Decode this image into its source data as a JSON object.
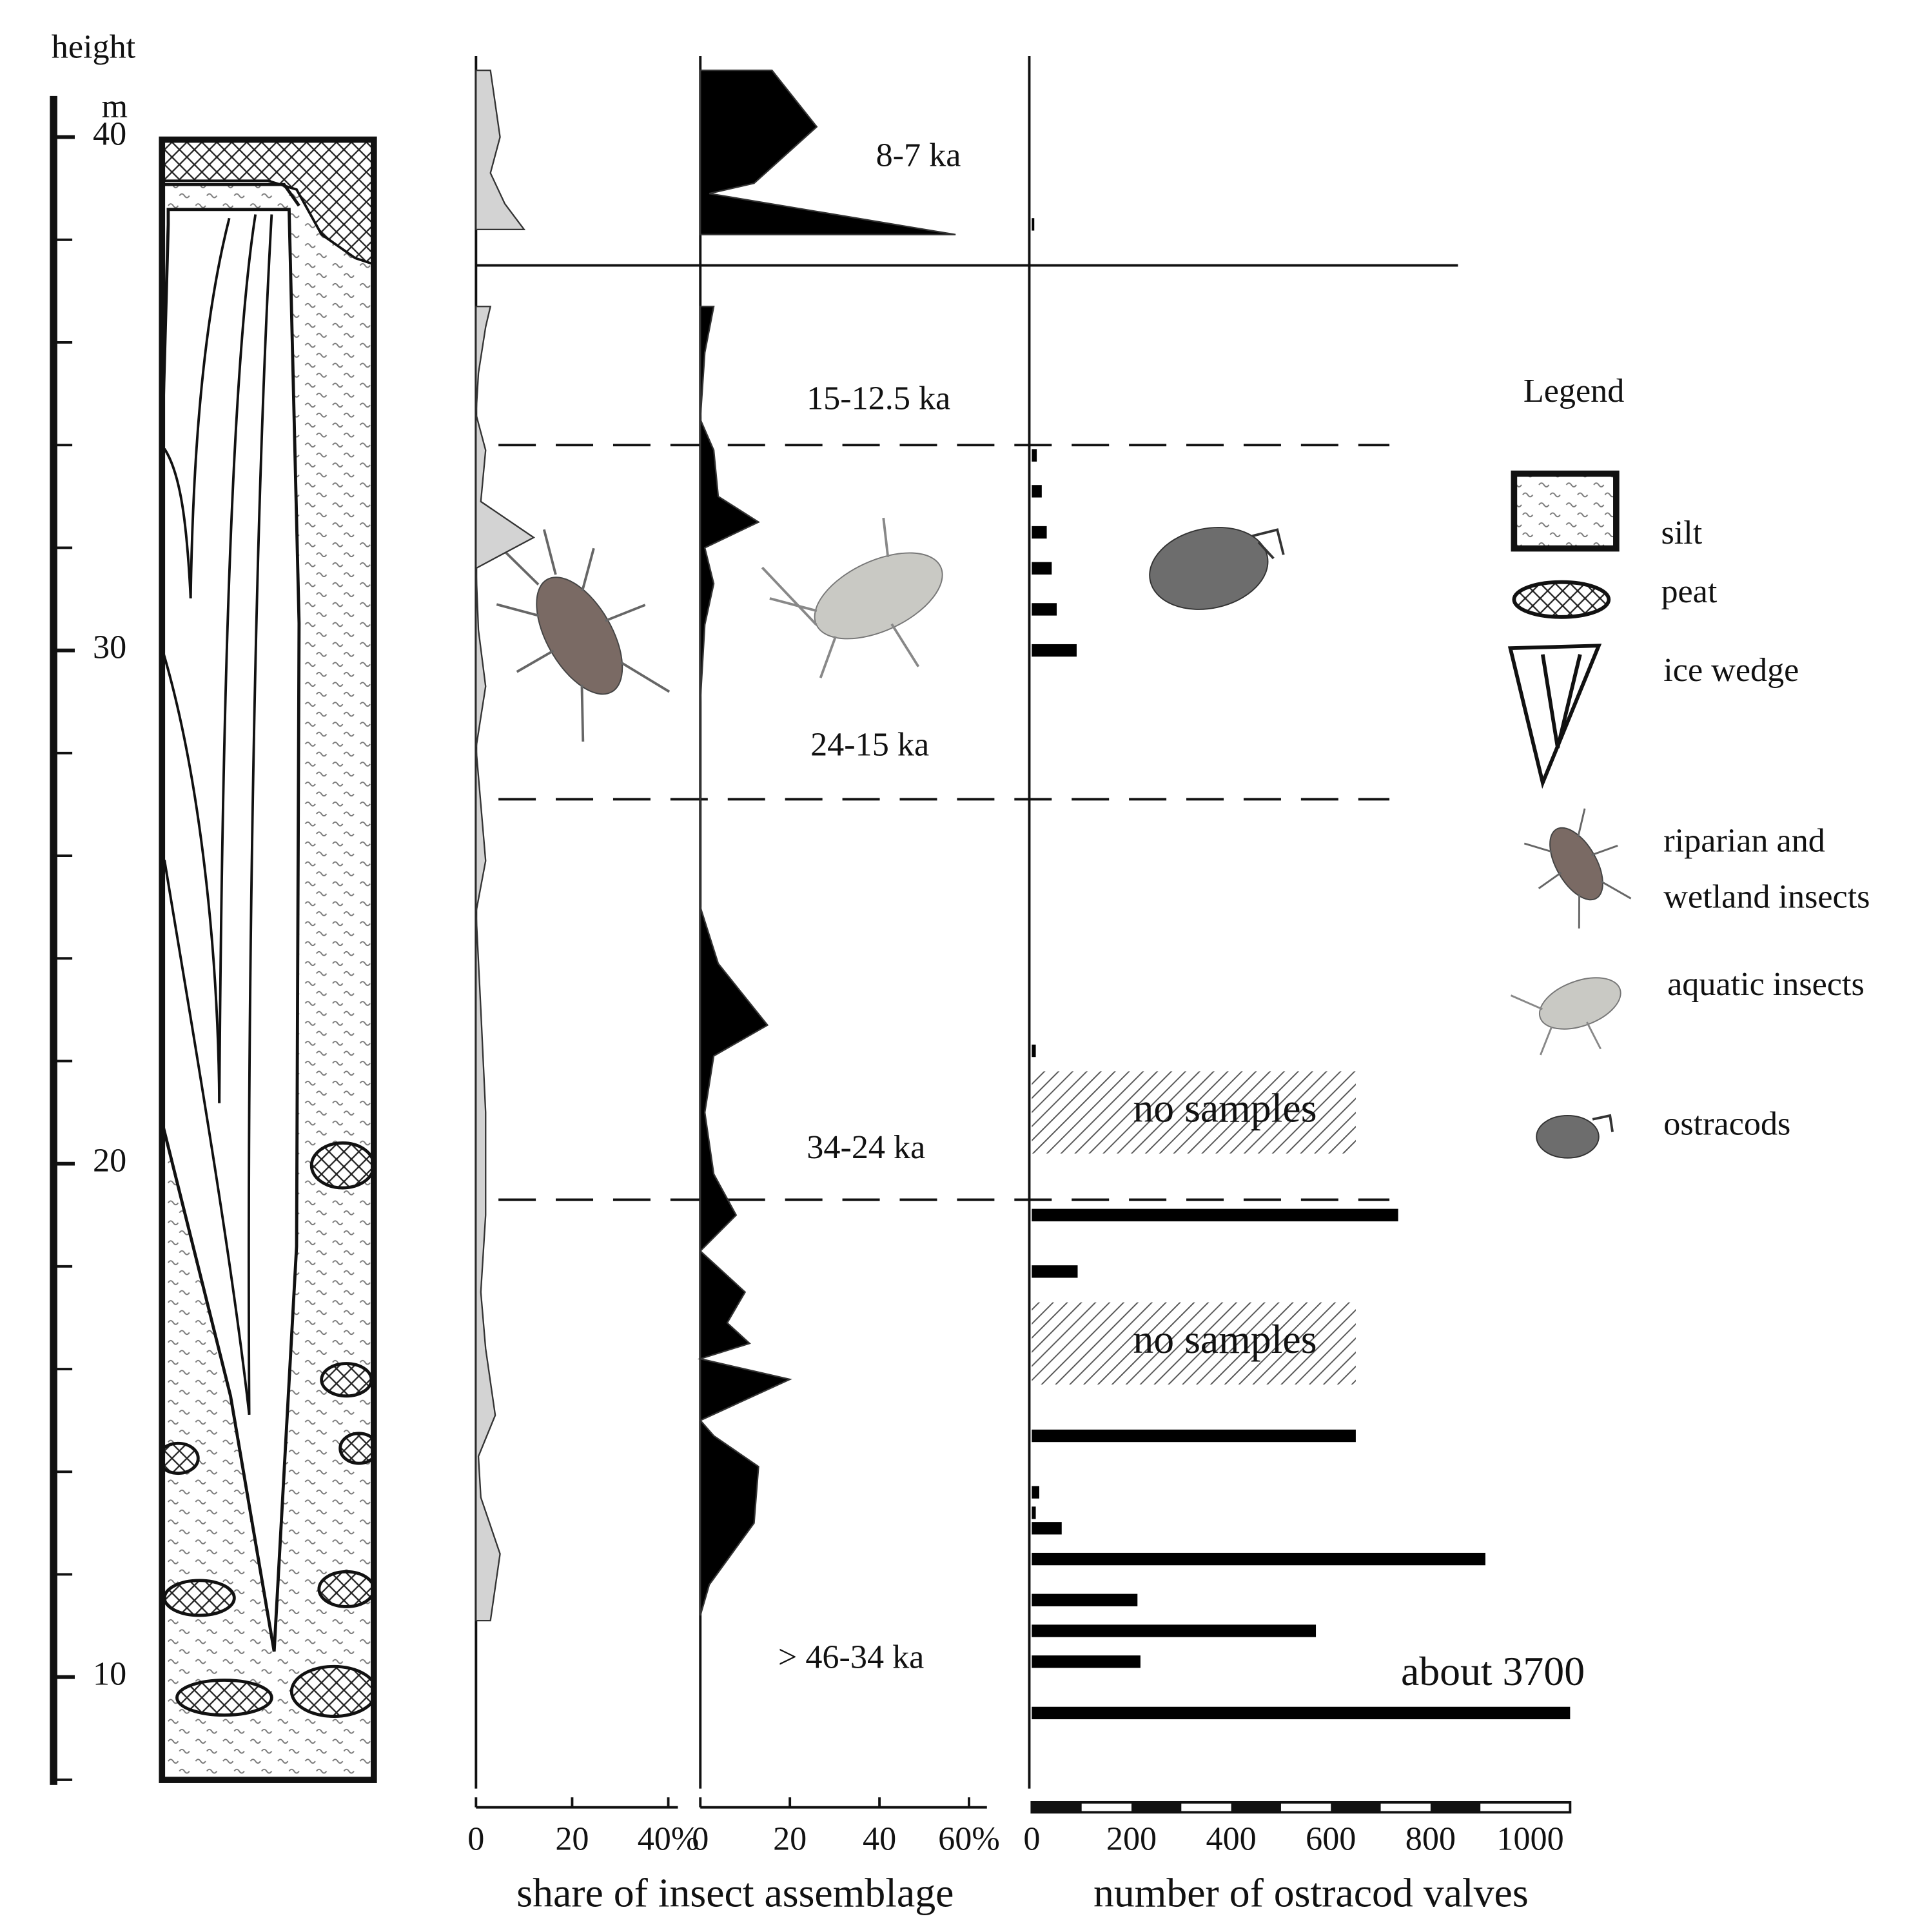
{
  "chart_data": [
    {
      "type": "column",
      "ylabel": "height",
      "yunit": "m",
      "ylim": [
        7.9,
        40.8
      ],
      "yticks": [
        10,
        20,
        30,
        40
      ],
      "yminorticks": [
        8,
        12,
        14,
        16,
        18,
        22,
        24,
        26,
        28,
        32,
        34,
        36,
        38
      ],
      "zone_boundaries": [
        37.5,
        34.0,
        27.1,
        19.3
      ],
      "zone_labels": [
        "8-7 ka",
        "15-12.5 ka",
        "24-15 ka",
        "34-24 ka",
        "> 46-34 ka"
      ],
      "legend": {
        "title": "Legend",
        "items": [
          [
            "silt"
          ],
          [
            "peat"
          ],
          [
            "ice wedge"
          ],
          [
            "riparian and",
            "wetland insects"
          ],
          [
            "aquatic insects"
          ],
          [
            "ostracods"
          ]
        ]
      }
    },
    {
      "type": "area",
      "color": "#d3d3d3",
      "xlim": [
        0,
        42
      ],
      "xticks": [
        0,
        20,
        {
          "value": 40,
          "label": "40%"
        }
      ],
      "xlabel": "share of insect assemblage",
      "y": [
        41.3,
        40.0,
        39.3,
        38.7,
        38.2,
        null,
        36.7,
        36.3,
        35.4,
        34.6,
        33.9,
        32.9,
        32.2,
        31.6,
        30.4,
        29.3,
        28.1,
        27.0,
        25.9,
        24.9,
        23.0,
        21.0,
        19.0,
        17.5,
        16.4,
        15.1,
        14.3,
        13.5,
        12.4,
        11.1
      ],
      "values": [
        3,
        5,
        3,
        6,
        10,
        null,
        3,
        2,
        0.5,
        0,
        2,
        1,
        12,
        0,
        0.5,
        2,
        0,
        1,
        2,
        0,
        1,
        2,
        2,
        1,
        2,
        4,
        0.5,
        1,
        5,
        3
      ]
    },
    {
      "type": "area",
      "color": "#000000",
      "xlim": [
        0,
        64
      ],
      "xticks": [
        0,
        20,
        40,
        {
          "value": 60,
          "label": "60%"
        }
      ],
      "y": [
        41.3,
        40.2,
        39.1,
        38.9,
        38.1,
        null,
        36.7,
        35.8,
        34.5,
        33.9,
        33.0,
        32.5,
        32.0,
        31.3,
        30.5,
        29.0,
        27.0,
        25.0,
        23.9,
        22.7,
        22.1,
        21.0,
        19.8,
        19.0,
        18.3,
        17.5,
        16.9,
        16.5,
        16.2,
        15.8,
        15.0,
        14.7,
        14.1,
        13.0,
        11.8,
        11.2
      ],
      "values": [
        16,
        26,
        12,
        2,
        57,
        null,
        3,
        1,
        0,
        3,
        4,
        13,
        1,
        3,
        1,
        0,
        0,
        0,
        4,
        15,
        3,
        1,
        3,
        8,
        0,
        10,
        6,
        11,
        0,
        20,
        0,
        3,
        13,
        12,
        2,
        0
      ]
    },
    {
      "type": "bar",
      "color": "#000000",
      "xlim": [
        0,
        1080
      ],
      "xticks": [
        0,
        200,
        400,
        600,
        800,
        1000
      ],
      "xminorticks": [
        0,
        100,
        200,
        300,
        400,
        500,
        600,
        700,
        800,
        900,
        1000
      ],
      "xlabel": "number of ostracod valves",
      "y": [
        38.3,
        33.8,
        33.1,
        32.3,
        31.6,
        30.8,
        30.0,
        22.2,
        19.0,
        17.9,
        14.7,
        13.6,
        13.2,
        12.9,
        12.3,
        11.5,
        10.9,
        10.3,
        9.3
      ],
      "values": [
        5,
        10,
        20,
        30,
        40,
        50,
        90,
        8,
        735,
        92,
        650,
        15,
        8,
        60,
        910,
        212,
        570,
        218,
        3700
      ],
      "value_labels": [
        null,
        null,
        null,
        null,
        null,
        null,
        null,
        null,
        null,
        null,
        null,
        null,
        null,
        null,
        null,
        null,
        null,
        null,
        "about 3700"
      ],
      "annotations": [
        {
          "text": "no samples",
          "ylim": [
            20.2,
            21.8
          ],
          "xlim": [
            0,
            650
          ]
        },
        {
          "text": "no samples",
          "ylim": [
            15.7,
            17.3
          ],
          "xlim": [
            0,
            650
          ]
        }
      ]
    }
  ]
}
